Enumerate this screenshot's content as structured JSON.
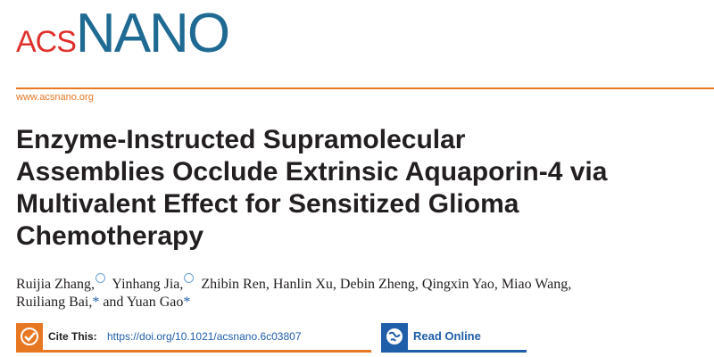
{
  "journal": {
    "prefix": "ACS",
    "name": "NANO",
    "url": "www.acsnano.org"
  },
  "title_lines": [
    "Enzyme-Instructed Supramolecular",
    "Assemblies Occlude Extrinsic Aquaporin-4 via",
    "Multivalent Effect for Sensitized Glioma",
    "Chemotherapy"
  ],
  "authors": [
    "Ruijia Zhang,",
    "Yinhang Jia,",
    "Zhibin Ren, Hanlin Xu, Debin Zheng, Qingxin Yao, Miao Wang,",
    "Ruiliang Bai,",
    "*",
    "and Yuan Gao",
    "*"
  ],
  "cite": {
    "label": "Cite This:",
    "doi": "https://doi.org/10.1021/acsnano.6c03807"
  },
  "read_online": "Read Online"
}
